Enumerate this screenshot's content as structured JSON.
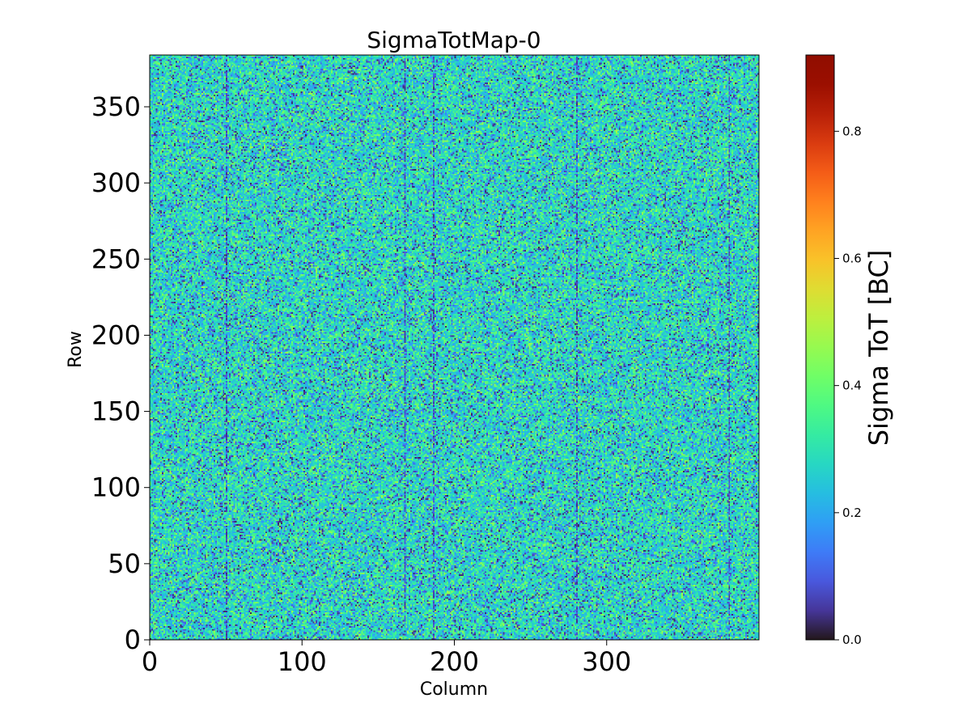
{
  "chart_data": {
    "type": "heatmap",
    "title": "SigmaTotMap-0",
    "xlabel": "Column",
    "ylabel": "Row",
    "xlim": [
      0,
      400
    ],
    "ylim": [
      0,
      384
    ],
    "x_ticks": [
      0,
      100,
      200,
      300
    ],
    "y_ticks": [
      0,
      50,
      100,
      150,
      200,
      250,
      300,
      350
    ],
    "x_tick_labels": [
      "0",
      "100",
      "200",
      "300"
    ],
    "y_tick_labels": [
      "0",
      "50",
      "100",
      "150",
      "200",
      "250",
      "300",
      "350"
    ],
    "colormap": "turbo",
    "colorbar": {
      "label": "Sigma ToT [BC]",
      "range": [
        0.0,
        0.92
      ],
      "ticks": [
        0.0,
        0.2,
        0.4,
        0.6,
        0.8
      ],
      "tick_labels": [
        "0.0",
        "0.2",
        "0.4",
        "0.6",
        "0.8"
      ]
    },
    "value_distribution": {
      "typical_range": [
        0.0,
        0.5
      ],
      "typical_mean": 0.27,
      "note": "noisy per-pixel values, mostly cyan/teal with scattered dark-blue and green pixels"
    },
    "dark_columns": [
      50,
      167,
      186,
      280,
      380
    ]
  }
}
